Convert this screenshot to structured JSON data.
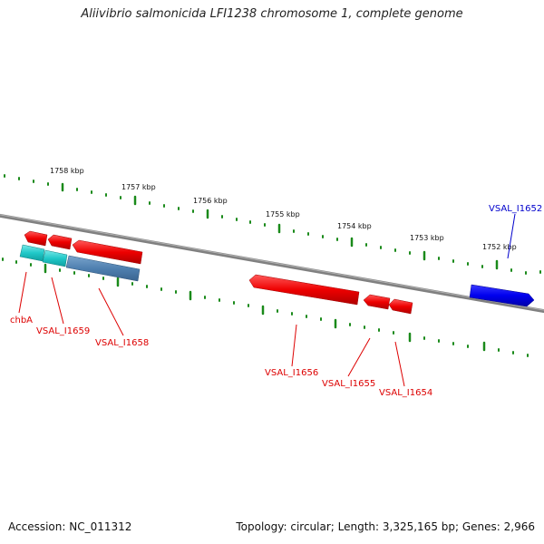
{
  "header": {
    "title": "Aliivibrio salmonicida LFI1238 chromosome 1, complete genome"
  },
  "footer": {
    "accession": "Accession: NC_011312",
    "summary": "Topology: circular; Length: 3,325,165 bp; Genes: 2,966"
  },
  "ruler": {
    "labels": [
      "1758 kbp",
      "1757 kbp",
      "1756 kbp",
      "1755 kbp",
      "1754 kbp",
      "1753 kbp",
      "1752 kbp"
    ]
  },
  "genes": [
    {
      "label": "chbA",
      "color": "#dd0000",
      "strand": "minus"
    },
    {
      "label": "VSAL_I1659",
      "color": "#dd0000",
      "strand": "minus"
    },
    {
      "label": "VSAL_I1658",
      "color": "#dd0000",
      "strand": "minus"
    },
    {
      "label": "VSAL_I1656",
      "color": "#dd0000",
      "strand": "minus"
    },
    {
      "label": "VSAL_I1655",
      "color": "#dd0000",
      "strand": "minus"
    },
    {
      "label": "VSAL_I1654",
      "color": "#dd0000",
      "strand": "minus"
    },
    {
      "label": "VSAL_I1652",
      "color": "#0000cc",
      "strand": "plus"
    }
  ],
  "colors": {
    "backbone": "#808080",
    "ticks": "#1a8a1a",
    "forward_gene": "#0000ee",
    "reverse_gene": "#ee0000",
    "feature_cyan": "#20c8c8",
    "feature_steel": "#4f80b0"
  }
}
